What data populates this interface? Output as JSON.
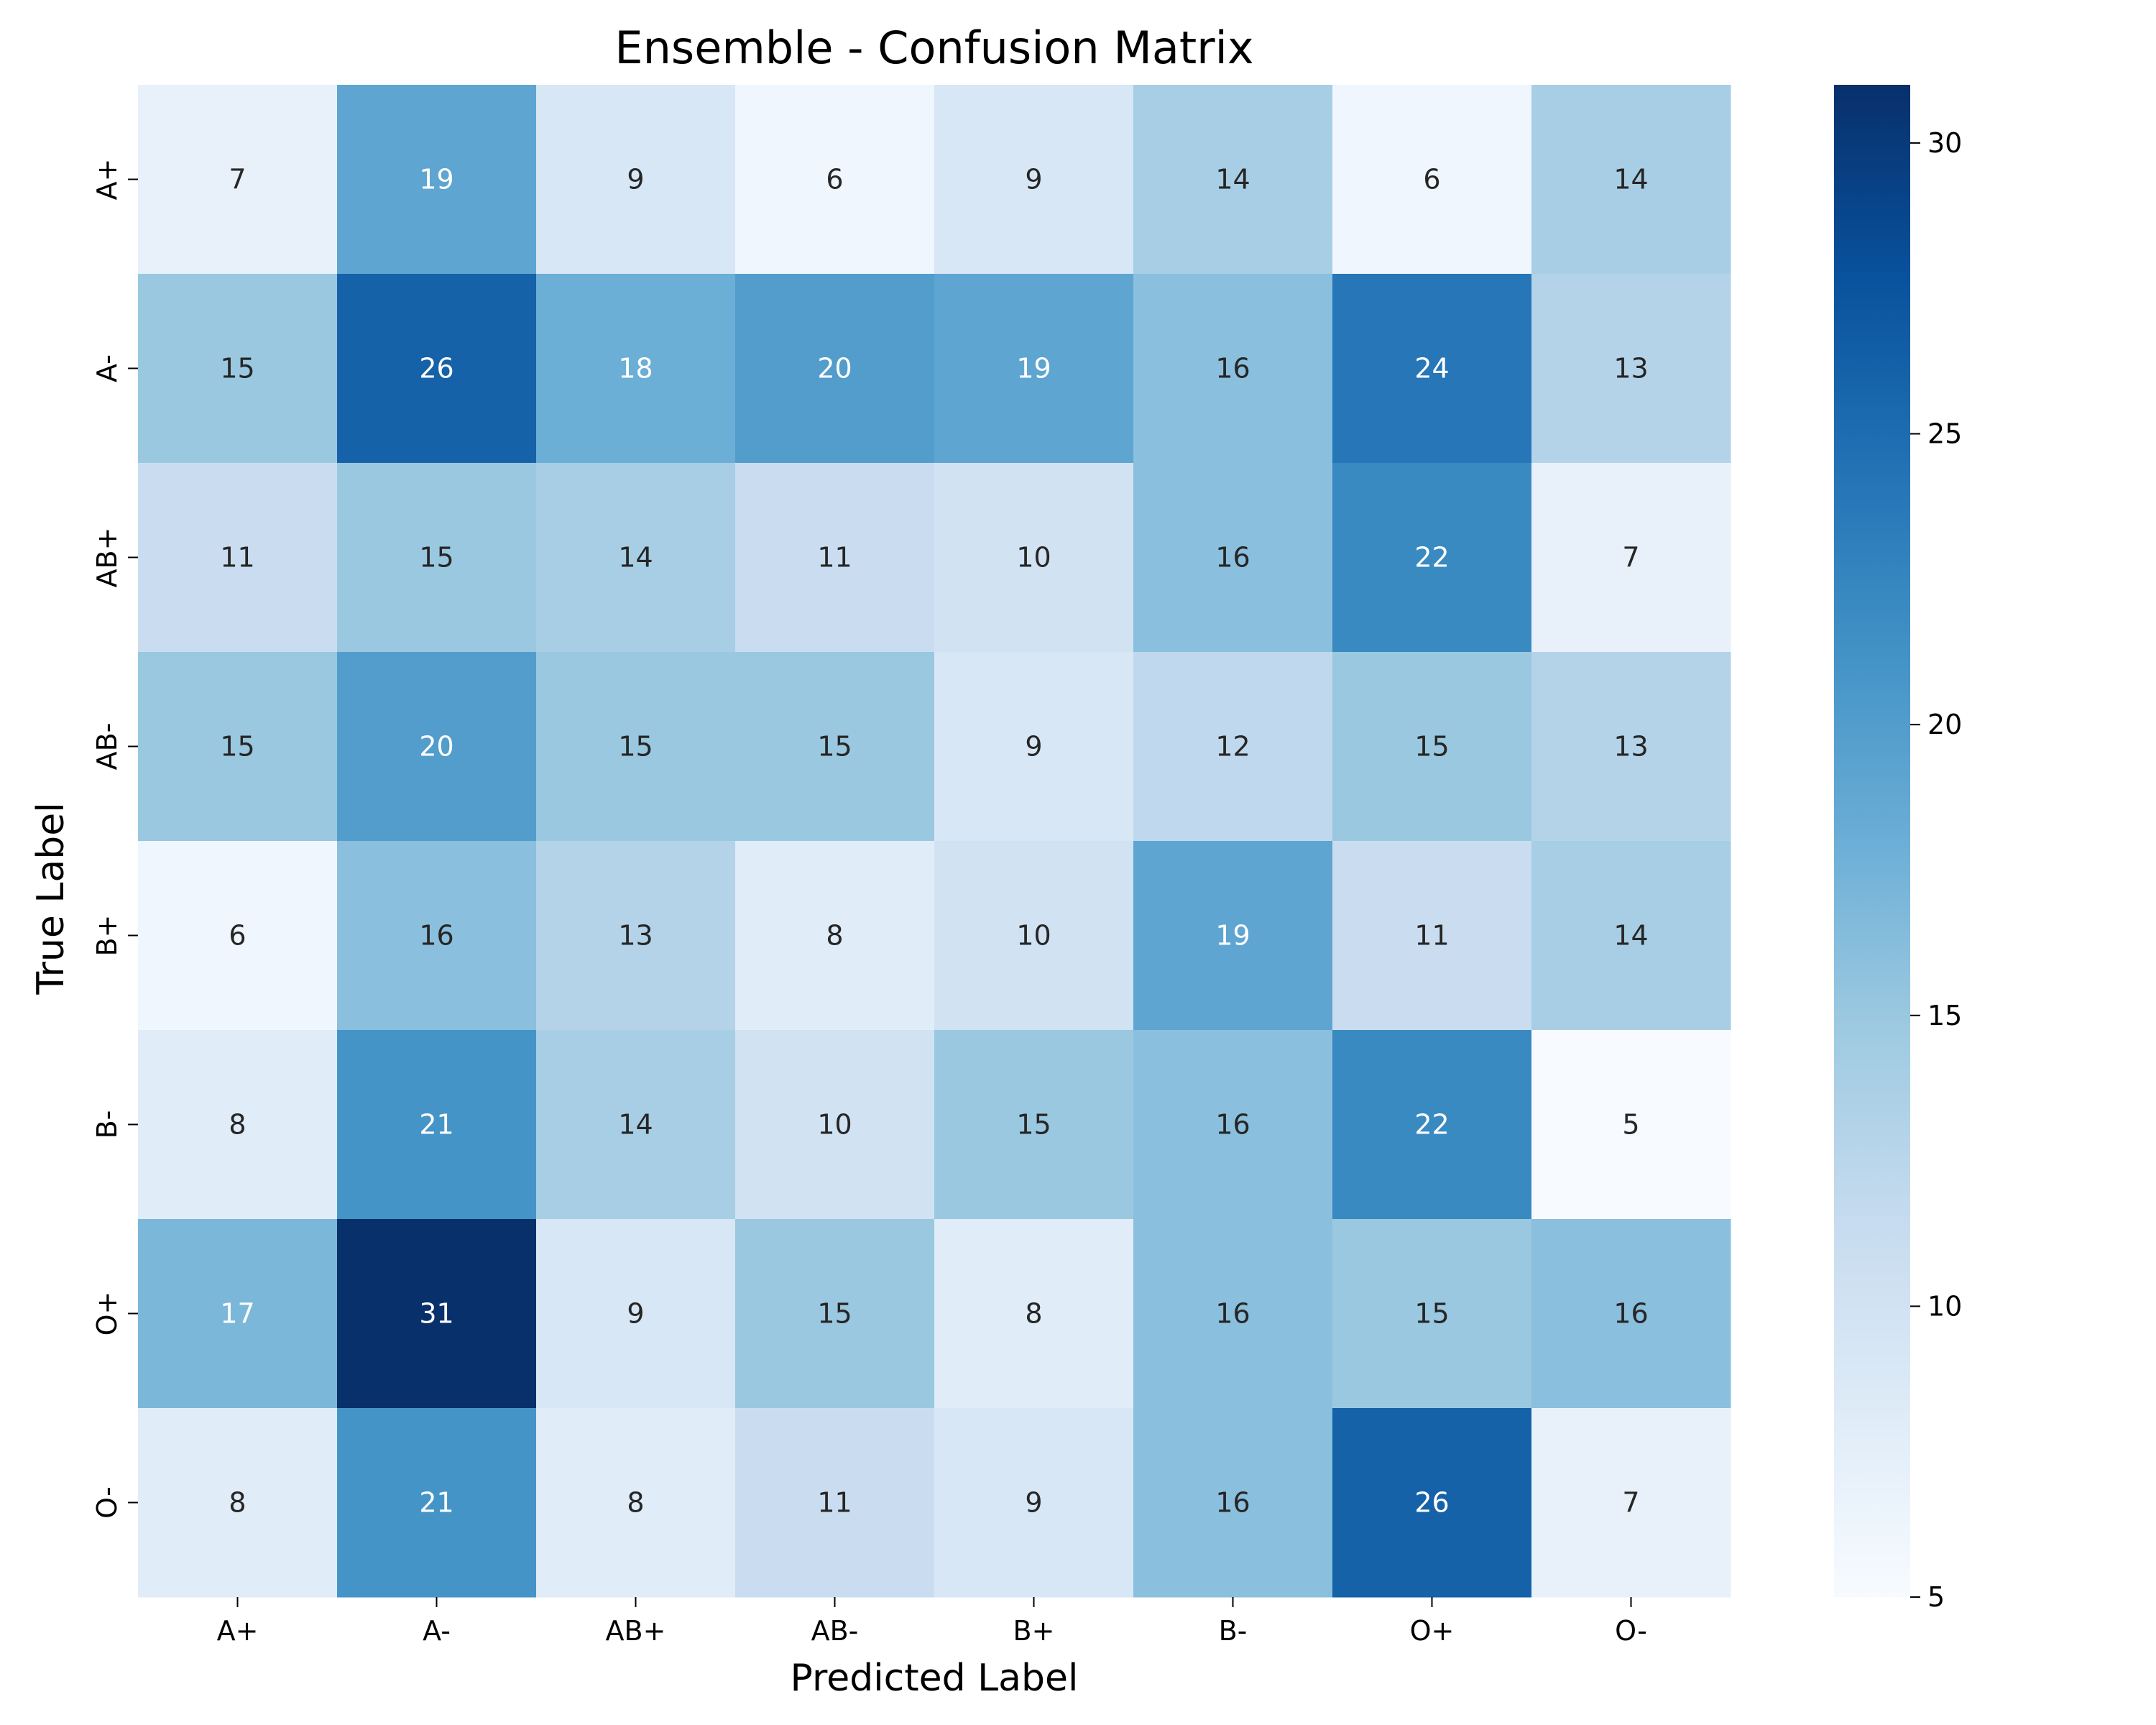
{
  "chart_data": {
    "type": "heatmap",
    "title": "Ensemble - Confusion Matrix",
    "xlabel": "Predicted Label",
    "ylabel": "True Label",
    "x_categories": [
      "A+",
      "A-",
      "AB+",
      "AB-",
      "B+",
      "B-",
      "O+",
      "O-"
    ],
    "y_categories": [
      "A+",
      "A-",
      "AB+",
      "AB-",
      "B+",
      "B-",
      "O+",
      "O-"
    ],
    "values": [
      [
        7,
        19,
        9,
        6,
        9,
        14,
        6,
        14
      ],
      [
        15,
        26,
        18,
        20,
        19,
        16,
        24,
        13
      ],
      [
        11,
        15,
        14,
        11,
        10,
        16,
        22,
        7
      ],
      [
        15,
        20,
        15,
        15,
        9,
        12,
        15,
        13
      ],
      [
        6,
        16,
        13,
        8,
        10,
        19,
        11,
        14
      ],
      [
        8,
        21,
        14,
        10,
        15,
        16,
        22,
        5
      ],
      [
        17,
        31,
        9,
        15,
        8,
        16,
        15,
        16
      ],
      [
        8,
        21,
        8,
        11,
        9,
        16,
        26,
        7
      ]
    ],
    "colorscale": "Blues",
    "colorbar": {
      "min": 5,
      "max": 31,
      "ticks": [
        5,
        10,
        15,
        20,
        25,
        30
      ]
    },
    "annotations": "cell counts"
  }
}
